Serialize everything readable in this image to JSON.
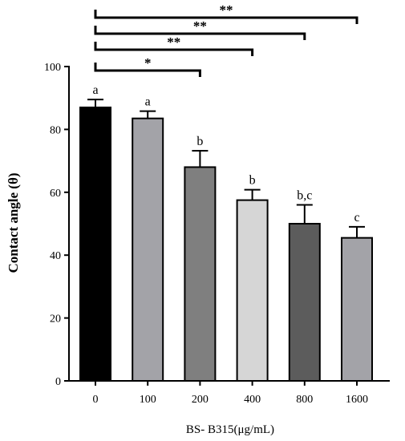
{
  "chart_data": {
    "type": "bar",
    "xlabel": "BS- B315(μg/mL)",
    "ylabel": "Contact angle (θ)",
    "ylim": [
      0,
      100
    ],
    "yticks": [
      0,
      20,
      40,
      60,
      80,
      100
    ],
    "categories": [
      "0",
      "100",
      "200",
      "400",
      "800",
      "1600"
    ],
    "values": [
      87.0,
      83.5,
      68.0,
      57.5,
      50.0,
      45.5
    ],
    "errors": [
      2.5,
      2.3,
      5.2,
      3.3,
      6.0,
      3.5
    ],
    "bar_colors": [
      "#000000",
      "#a3a3a8",
      "#7f7f7f",
      "#d6d6d6",
      "#5c5c5c",
      "#a3a3a8"
    ],
    "letters": [
      "a",
      "a",
      "b",
      "b",
      "b,c",
      "c"
    ],
    "comparisons": [
      {
        "from": "0",
        "to": "200",
        "label": "*"
      },
      {
        "from": "0",
        "to": "400",
        "label": "**"
      },
      {
        "from": "0",
        "to": "800",
        "label": "**"
      },
      {
        "from": "0",
        "to": "1600",
        "label": "**"
      }
    ]
  }
}
